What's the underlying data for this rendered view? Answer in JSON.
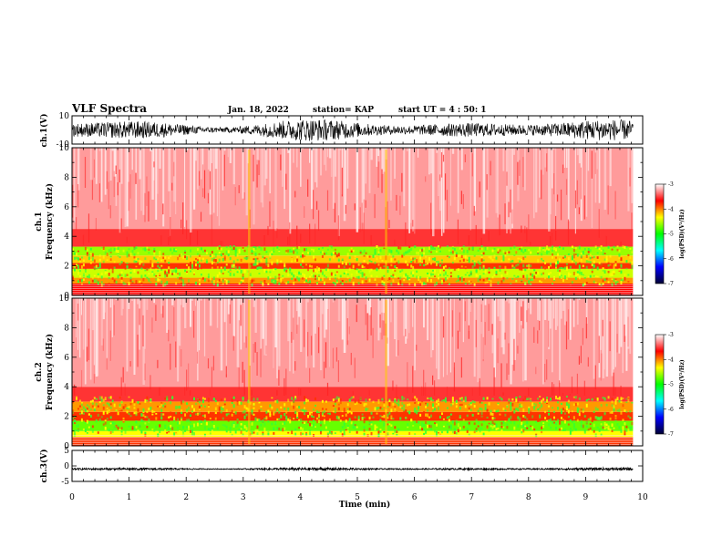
{
  "header": {
    "title": "VLF Spectra",
    "date": "Jan. 18, 2022",
    "station": "station= KAP",
    "start_time": "start  UT =  4 : 50: 1"
  },
  "chart_data": [
    {
      "type": "line",
      "id": "waveform-ch1",
      "ylabel": "ch.1(V)",
      "ylim": [
        -10,
        10
      ],
      "yticks": [
        "10",
        "-10"
      ],
      "xlim": [
        0,
        10
      ],
      "data_extent_x": [
        0,
        9.83
      ],
      "signal": "dense noise waveform spanning roughly -8 V to +8 V"
    },
    {
      "type": "heatmap",
      "id": "spectrogram-ch1",
      "channel": "ch.1",
      "ylabel": "Frequency  (kHz)",
      "ylim": [
        0,
        10
      ],
      "yticks": [
        "0",
        "2",
        "4",
        "6",
        "8",
        "10"
      ],
      "xlim": [
        0,
        10
      ],
      "data_extent_x": [
        0,
        9.83
      ],
      "colorbar": {
        "label": "log(PSD)(V²/Hz)",
        "range": [
          -7,
          -3
        ],
        "ticks": [
          "-3",
          "-4",
          "-5",
          "-6",
          "-7"
        ],
        "colors": [
          "#ffffff",
          "#ff0000",
          "#ffff00",
          "#00ff00",
          "#00ffff",
          "#0000ff",
          "#000033"
        ]
      },
      "bands": [
        {
          "f_low": 0.0,
          "f_high": 0.8,
          "log_psd": -4.0
        },
        {
          "f_low": 0.8,
          "f_high": 1.2,
          "log_psd": -4.3
        },
        {
          "f_low": 1.2,
          "f_high": 1.8,
          "log_psd": -4.6
        },
        {
          "f_low": 1.8,
          "f_high": 2.2,
          "log_psd": -4.1
        },
        {
          "f_low": 2.2,
          "f_high": 2.7,
          "log_psd": -4.4
        },
        {
          "f_low": 2.7,
          "f_high": 3.3,
          "log_psd": -4.7
        },
        {
          "f_low": 3.3,
          "f_high": 4.5,
          "log_psd": -3.8
        },
        {
          "f_low": 4.5,
          "f_high": 10.0,
          "log_psd": -3.4
        }
      ],
      "features": [
        {
          "t": 3.1,
          "note": "broadband vertical streak"
        },
        {
          "t": 5.5,
          "note": "broadband vertical streak"
        }
      ]
    },
    {
      "type": "heatmap",
      "id": "spectrogram-ch2",
      "channel": "ch.2",
      "ylabel": "Frequency  (kHz)",
      "ylim": [
        0,
        10
      ],
      "yticks": [
        "0",
        "2",
        "4",
        "6",
        "8",
        "10"
      ],
      "xlim": [
        0,
        10
      ],
      "data_extent_x": [
        0,
        9.83
      ],
      "colorbar": {
        "label": "log(PSD)(V²/Hz)",
        "range": [
          -7,
          -3
        ],
        "ticks": [
          "-3",
          "-4",
          "-5",
          "-6",
          "-7"
        ],
        "colors": [
          "#ffffff",
          "#ff0000",
          "#ffff00",
          "#00ff00",
          "#00ffff",
          "#0000ff",
          "#000033"
        ]
      },
      "bands": [
        {
          "f_low": 0.0,
          "f_high": 0.6,
          "log_psd": -4.1
        },
        {
          "f_low": 0.6,
          "f_high": 1.0,
          "log_psd": -4.5
        },
        {
          "f_low": 1.0,
          "f_high": 1.7,
          "log_psd": -4.8
        },
        {
          "f_low": 1.7,
          "f_high": 2.3,
          "log_psd": -4.1
        },
        {
          "f_low": 2.3,
          "f_high": 3.0,
          "log_psd": -4.3
        },
        {
          "f_low": 3.0,
          "f_high": 4.0,
          "log_psd": -3.8
        },
        {
          "f_low": 4.0,
          "f_high": 10.0,
          "log_psd": -3.4
        }
      ],
      "features": [
        {
          "t": 3.1,
          "note": "broadband vertical streak"
        },
        {
          "t": 5.5,
          "note": "broadband vertical streak"
        }
      ]
    },
    {
      "type": "line",
      "id": "waveform-ch3",
      "ylabel": "ch.3(V)",
      "ylim": [
        -5,
        5
      ],
      "yticks": [
        "5",
        "0",
        "-5"
      ],
      "xlim": [
        0,
        10
      ],
      "data_extent_x": [
        0,
        9.83
      ],
      "signal": "narrow noise band around -1 V"
    }
  ],
  "xaxis": {
    "label": "Time  (min)",
    "ticks": [
      "0",
      "1",
      "2",
      "3",
      "4",
      "5",
      "6",
      "7",
      "8",
      "9",
      "10"
    ]
  }
}
